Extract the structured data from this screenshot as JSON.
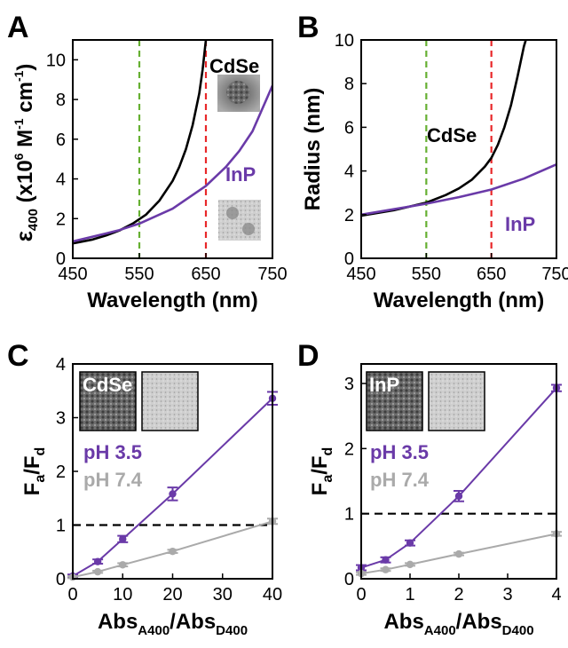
{
  "colors": {
    "purple": "#6a3aa8",
    "gray": "#aaaaaa",
    "black": "#000000",
    "green": "#66b032",
    "red": "#e8282a"
  },
  "chart_data": [
    {
      "panel": "A",
      "type": "line",
      "ylabel_main": "ε",
      "ylabel_sub": "400",
      "ylabel_rest": " (x10",
      "ylabel_sup1": "6",
      "ylabel_mid": " M",
      "ylabel_sup2": "-1",
      "ylabel_mid2": " cm",
      "ylabel_sup3": "-1",
      "ylabel_end": ")",
      "xlabel": "Wavelength (nm)",
      "xlim": [
        450,
        750
      ],
      "ylim": [
        0,
        11
      ],
      "xticks": [
        450,
        550,
        650,
        750
      ],
      "yticks": [
        0,
        2,
        4,
        6,
        8,
        10
      ],
      "vlines": [
        {
          "x": 550,
          "color": "green"
        },
        {
          "x": 650,
          "color": "red"
        }
      ],
      "series": [
        {
          "name": "CdSe",
          "color": "black",
          "x": [
            450,
            480,
            500,
            520,
            540,
            560,
            580,
            600,
            610,
            620,
            630,
            640,
            645,
            650
          ],
          "y": [
            0.75,
            0.95,
            1.15,
            1.4,
            1.75,
            2.2,
            2.9,
            3.9,
            4.6,
            5.5,
            6.7,
            8.3,
            9.5,
            11
          ]
        },
        {
          "name": "InP",
          "color": "purple",
          "x": [
            450,
            500,
            520,
            550,
            600,
            650,
            680,
            700,
            720,
            750
          ],
          "y": [
            0.85,
            1.25,
            1.42,
            1.75,
            2.5,
            3.65,
            4.6,
            5.4,
            6.4,
            8.7
          ]
        }
      ],
      "annotations": [
        {
          "text": "CdSe",
          "color": "black"
        },
        {
          "text": "InP",
          "color": "purple"
        }
      ]
    },
    {
      "panel": "B",
      "type": "line",
      "ylabel": "Radius (nm)",
      "xlabel": "Wavelength (nm)",
      "xlim": [
        450,
        750
      ],
      "ylim": [
        0,
        10
      ],
      "xticks": [
        450,
        550,
        650,
        750
      ],
      "yticks": [
        0,
        2,
        4,
        6,
        8,
        10
      ],
      "vlines": [
        {
          "x": 550,
          "color": "green"
        },
        {
          "x": 650,
          "color": "red"
        }
      ],
      "series": [
        {
          "name": "CdSe",
          "color": "black",
          "x": [
            450,
            500,
            550,
            580,
            600,
            620,
            640,
            650,
            660,
            670,
            680,
            690,
            700,
            703
          ],
          "y": [
            1.95,
            2.2,
            2.55,
            2.9,
            3.2,
            3.6,
            4.2,
            4.6,
            5.2,
            6.0,
            7.0,
            8.3,
            9.7,
            10
          ]
        },
        {
          "name": "InP",
          "color": "purple",
          "x": [
            450,
            500,
            550,
            600,
            650,
            700,
            750
          ],
          "y": [
            2.0,
            2.25,
            2.5,
            2.8,
            3.15,
            3.65,
            4.3
          ]
        }
      ],
      "annotations": [
        {
          "text": "CdSe",
          "color": "black"
        },
        {
          "text": "InP",
          "color": "purple"
        }
      ]
    },
    {
      "panel": "C",
      "type": "scatter",
      "ylabel_main": "F",
      "ylabel_sub1": "a",
      "ylabel_mid": "/F",
      "ylabel_sub2": "d",
      "xlabel_main": "Abs",
      "xlabel_sub1": "A400",
      "xlabel_mid": "/Abs",
      "xlabel_sub2": "D400",
      "xlim": [
        0,
        40
      ],
      "ylim": [
        0,
        4
      ],
      "xticks": [
        0,
        10,
        20,
        30,
        40
      ],
      "yticks": [
        0,
        1,
        2,
        3,
        4
      ],
      "hline": 1,
      "inset_labels": [
        "CdSe"
      ],
      "series": [
        {
          "name": "pH 3.5",
          "color": "purple",
          "x": [
            0,
            5,
            10,
            20,
            40
          ],
          "y": [
            0.05,
            0.32,
            0.74,
            1.58,
            3.36
          ],
          "err": [
            0.03,
            0.04,
            0.06,
            0.12,
            0.12
          ]
        },
        {
          "name": "pH 7.4",
          "color": "gray",
          "x": [
            0,
            5,
            10,
            20,
            40
          ],
          "y": [
            0.03,
            0.13,
            0.26,
            0.51,
            1.07
          ],
          "err": [
            0.02,
            0.02,
            0.03,
            0.03,
            0.05
          ]
        }
      ]
    },
    {
      "panel": "D",
      "type": "scatter",
      "ylabel_main": "F",
      "ylabel_sub1": "a",
      "ylabel_mid": "/F",
      "ylabel_sub2": "d",
      "xlabel_main": "Abs",
      "xlabel_sub1": "A400",
      "xlabel_mid": "/Abs",
      "xlabel_sub2": "D400",
      "xlim": [
        0,
        4
      ],
      "ylim": [
        0,
        3.3
      ],
      "xticks": [
        0,
        1,
        2,
        3,
        4
      ],
      "yticks": [
        0,
        1,
        2,
        3
      ],
      "hline": 1,
      "inset_labels": [
        "InP"
      ],
      "series": [
        {
          "name": "pH 3.5",
          "color": "purple",
          "x": [
            0,
            0.5,
            1,
            2,
            4
          ],
          "y": [
            0.17,
            0.29,
            0.55,
            1.27,
            2.93
          ],
          "err": [
            0.04,
            0.04,
            0.04,
            0.08,
            0.05
          ]
        },
        {
          "name": "pH 7.4",
          "color": "gray",
          "x": [
            0,
            0.5,
            1,
            2,
            4
          ],
          "y": [
            0.08,
            0.14,
            0.22,
            0.38,
            0.69
          ],
          "err": [
            0.02,
            0.02,
            0.02,
            0.02,
            0.03
          ]
        }
      ]
    }
  ]
}
